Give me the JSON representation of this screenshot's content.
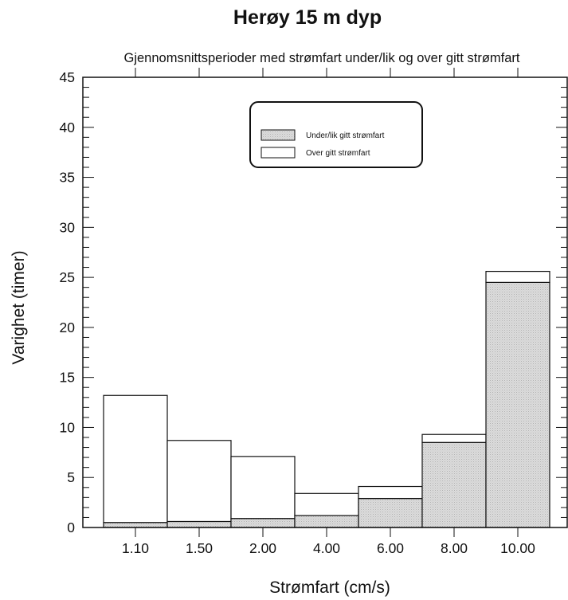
{
  "chart_data": {
    "type": "bar",
    "stacked": true,
    "title": "Herøy 15 m dyp",
    "subtitle": "Gjennomsnittsperioder med strømfart under/lik og over gitt strømfart",
    "xlabel": "Strømfart (cm/s)",
    "ylabel": "Varighet (timer)",
    "categories": [
      "1.10",
      "1.50",
      "2.00",
      "4.00",
      "6.00",
      "8.00",
      "10.00"
    ],
    "ylim": [
      0,
      45
    ],
    "yticks": [
      "0",
      "5",
      "10",
      "15",
      "20",
      "25",
      "30",
      "35",
      "40",
      "45"
    ],
    "legend_position": "top-center",
    "series": [
      {
        "name": "Under/lik gitt strømfart",
        "values": [
          0.5,
          0.6,
          0.9,
          1.2,
          2.9,
          8.5,
          24.5
        ],
        "color": "#d4d4d4"
      },
      {
        "name": "Over gitt strømfart",
        "values": [
          12.7,
          8.1,
          6.2,
          2.2,
          1.2,
          0.8,
          1.1
        ],
        "color": "#ffffff"
      }
    ]
  }
}
